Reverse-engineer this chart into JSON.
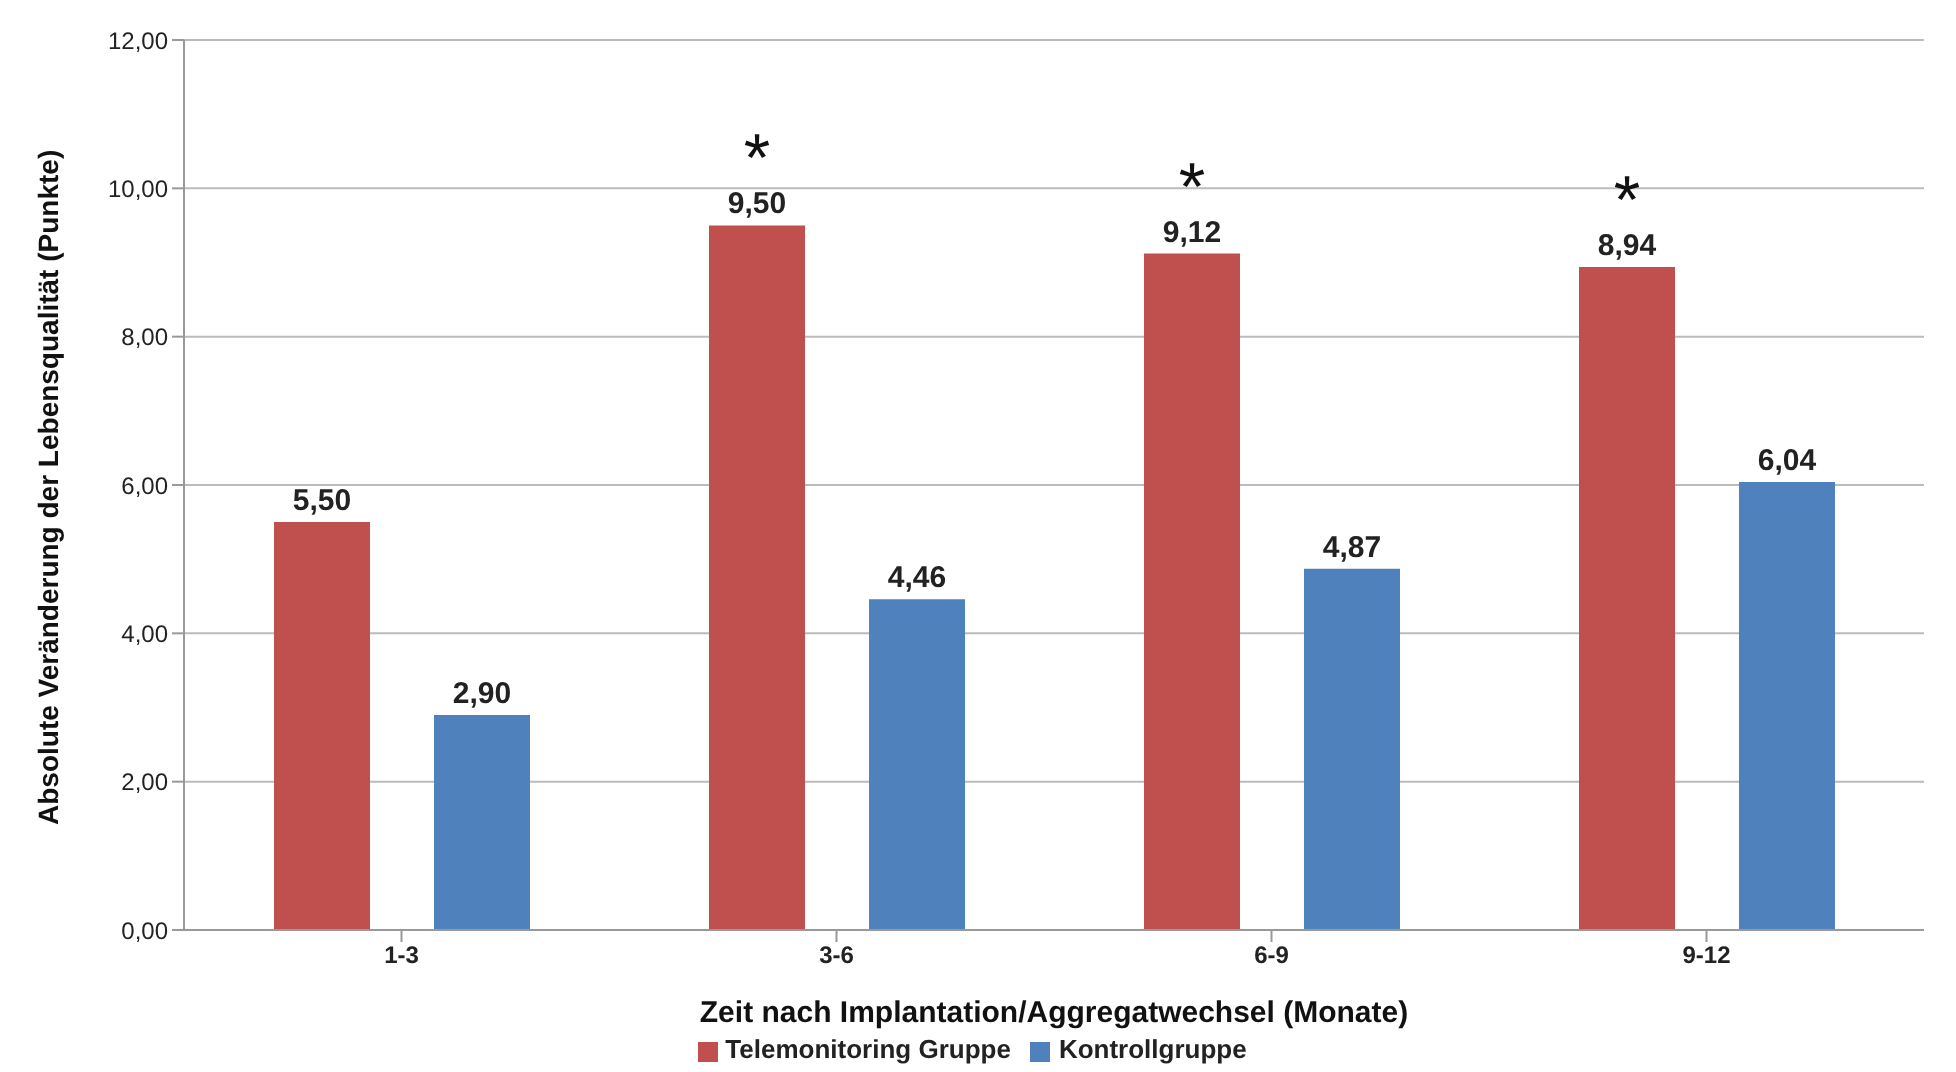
{
  "chart_data": {
    "type": "bar",
    "xlabel": "Zeit nach Implantation/Aggregatwechsel (Monate)",
    "ylabel": "Absolute Veränderung der Lebensqualität  (Punkte)",
    "categories": [
      "1-3",
      "3-6",
      "6-9",
      "9-12"
    ],
    "series": [
      {
        "name": "Telemonitoring Gruppe",
        "color": "#c0504d",
        "values": [
          5.5,
          9.5,
          9.12,
          8.94
        ],
        "value_labels": [
          "5,50",
          "9,50",
          "9,12",
          "8,94"
        ]
      },
      {
        "name": "Kontrollgruppe",
        "color": "#4f81bd",
        "values": [
          2.9,
          4.46,
          4.87,
          6.04
        ],
        "value_labels": [
          "2,90",
          "4,46",
          "4,87",
          "6,04"
        ]
      }
    ],
    "ylim": [
      0,
      12
    ],
    "yticks": [
      {
        "value": 0,
        "label": "0,00"
      },
      {
        "value": 2,
        "label": "2,00"
      },
      {
        "value": 4,
        "label": "4,00"
      },
      {
        "value": 6,
        "label": "6,00"
      },
      {
        "value": 8,
        "label": "8,00"
      },
      {
        "value": 10,
        "label": "10,00"
      },
      {
        "value": 12,
        "label": "12,00"
      }
    ],
    "grid": "y",
    "legend": "bottom",
    "annotations": [
      "*",
      "*",
      "*"
    ]
  }
}
